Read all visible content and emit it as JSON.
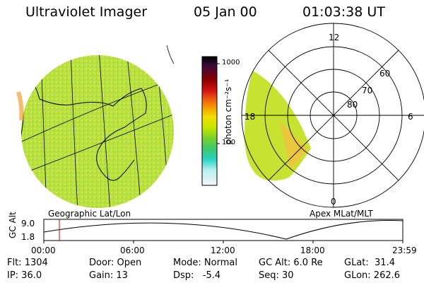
{
  "header": {
    "instrument": "Ultraviolet Imager",
    "date": "05 Jan 00",
    "time": "01:03:38 UT"
  },
  "colorbar": {
    "unit": "photon cm⁻²s⁻¹",
    "ticks": [
      "1000",
      "100"
    ],
    "colors": [
      "#000000",
      "#3a0a3a",
      "#8a0000",
      "#d21010",
      "#f05a10",
      "#f5a000",
      "#f0e000",
      "#c8e600",
      "#78d22a",
      "#3cc86e",
      "#2ad2c8",
      "#b4f0f0",
      "#f4f4f4"
    ]
  },
  "geo_panel": {
    "label": "Geographic Lat/Lon",
    "fill": "#b8e040"
  },
  "polar_panel": {
    "label": "Apex MLat/MLT",
    "mlt_labels": [
      "12",
      "18",
      "6",
      "0"
    ],
    "lat_labels": [
      "60",
      "70",
      "80"
    ],
    "fill": "#c8e232"
  },
  "altitude_plot": {
    "ylabel": "GC Alt",
    "yticks": [
      "9.0",
      "1.8"
    ],
    "xticks": [
      "00:00",
      "06:00",
      "12:00",
      "18:00",
      "23:59"
    ],
    "marker_color": "#d00000"
  },
  "status": {
    "flt": "Flt: 1304",
    "ip": "IP: 36.0",
    "door": "Door: Open",
    "gain": "Gain: 13",
    "mode": "Mode: Normal",
    "dsp": "Dsp:   -5.4",
    "gc_alt": "GC Alt: 6.0 Re",
    "seq": "Seq: 30",
    "glat": "GLat:  31.4",
    "glon": "GLon: 262.6"
  }
}
